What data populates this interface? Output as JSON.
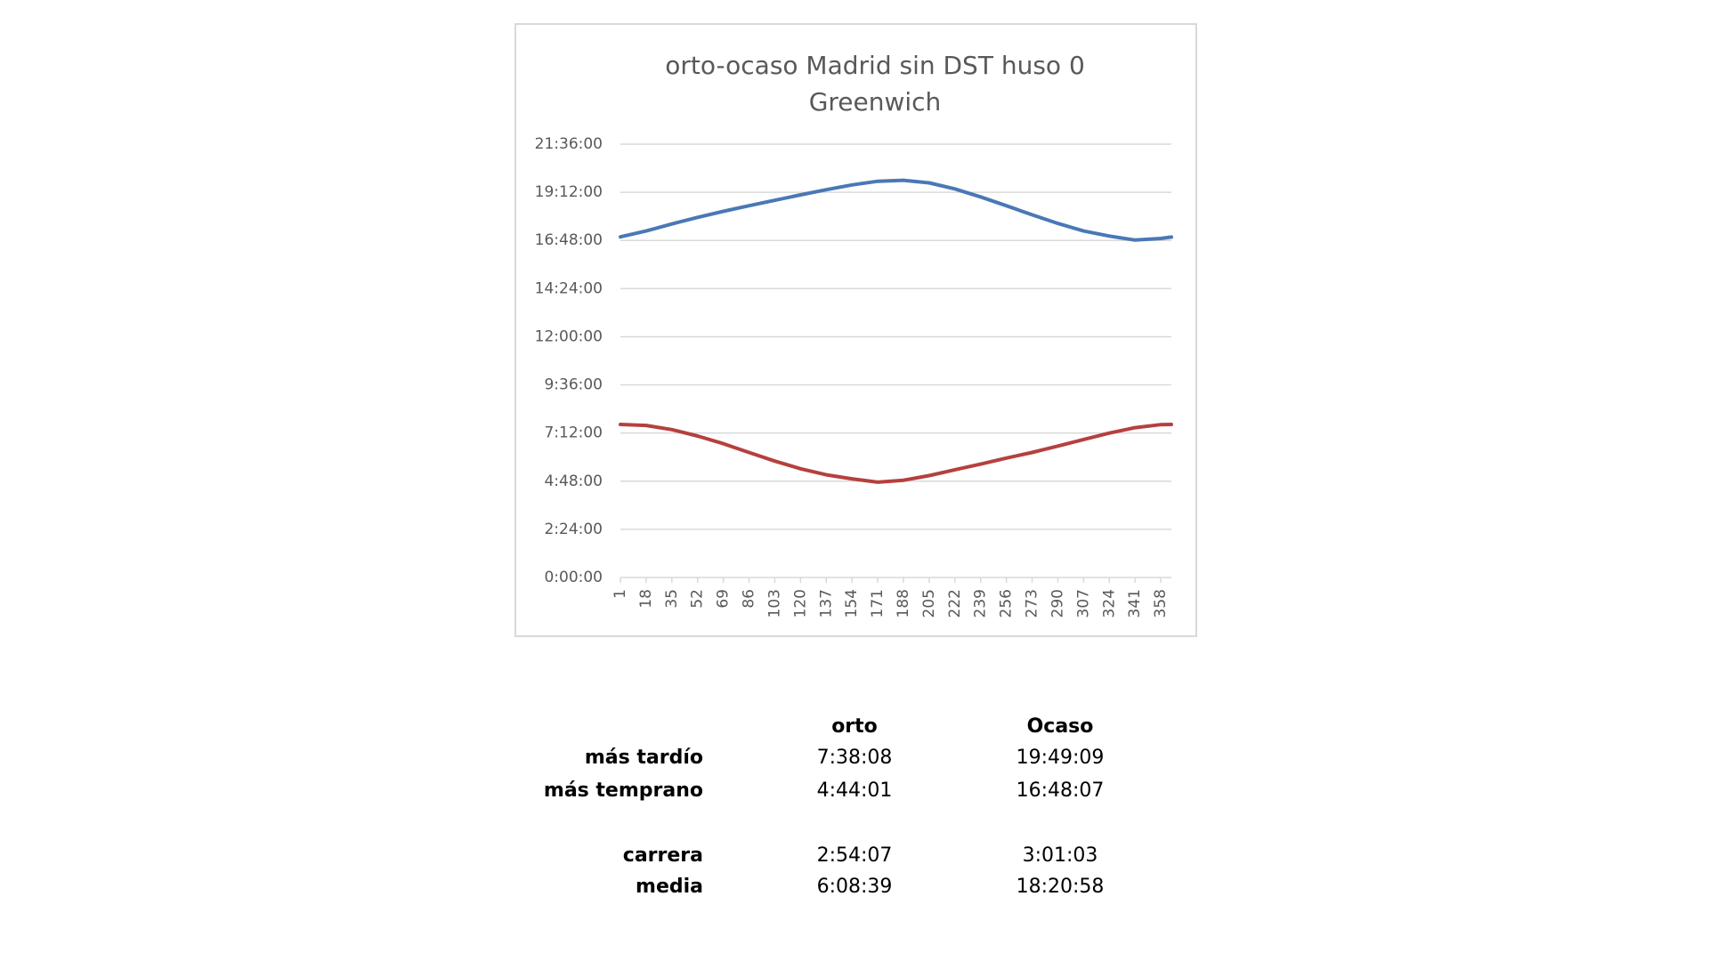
{
  "chart_data": {
    "type": "line",
    "title": [
      "orto-ocaso Madrid sin DST huso 0",
      "Greenwich"
    ],
    "x": [
      1,
      18,
      35,
      52,
      69,
      86,
      103,
      120,
      137,
      154,
      171,
      188,
      205,
      222,
      239,
      256,
      273,
      290,
      307,
      324,
      341,
      358,
      365
    ],
    "xlim": [
      1,
      365
    ],
    "xticks": [
      1,
      18,
      35,
      52,
      69,
      86,
      103,
      120,
      137,
      154,
      171,
      188,
      205,
      222,
      239,
      256,
      273,
      290,
      307,
      324,
      341,
      358
    ],
    "series": [
      {
        "color": "#4a78b5",
        "values": [
          16.98,
          17.27,
          17.62,
          17.95,
          18.25,
          18.53,
          18.8,
          19.07,
          19.33,
          19.57,
          19.75,
          19.8,
          19.67,
          19.37,
          18.97,
          18.53,
          18.08,
          17.65,
          17.27,
          17.02,
          16.82,
          16.9,
          16.97
        ]
      },
      {
        "color": "#b5403d",
        "values": [
          7.63,
          7.58,
          7.37,
          7.05,
          6.67,
          6.23,
          5.8,
          5.42,
          5.12,
          4.92,
          4.75,
          4.85,
          5.08,
          5.37,
          5.65,
          5.95,
          6.23,
          6.55,
          6.88,
          7.2,
          7.47,
          7.62,
          7.63
        ]
      }
    ],
    "ylim": [
      0,
      21.6
    ],
    "yticks": [
      {
        "value": 0,
        "label": "0:00:00"
      },
      {
        "value": 2.4,
        "label": "2:24:00"
      },
      {
        "value": 4.8,
        "label": "4:48:00"
      },
      {
        "value": 7.2,
        "label": "7:12:00"
      },
      {
        "value": 9.6,
        "label": "9:36:00"
      },
      {
        "value": 12,
        "label": "12:00:00"
      },
      {
        "value": 14.4,
        "label": "14:24:00"
      },
      {
        "value": 16.8,
        "label": "16:48:00"
      },
      {
        "value": 19.2,
        "label": "19:12:00"
      },
      {
        "value": 21.6,
        "label": "21:36:00"
      }
    ],
    "grid": true
  },
  "table": {
    "columns": [
      "orto",
      "Ocaso"
    ],
    "rows": [
      [
        "más tardío",
        "7:38:08",
        "19:49:09"
      ],
      [
        "más temprano",
        "4:44:01",
        "16:48:07"
      ],
      [
        "carrera",
        "2:54:07",
        "3:01:03"
      ],
      [
        "media",
        "6:08:39",
        "18:20:58"
      ]
    ]
  }
}
